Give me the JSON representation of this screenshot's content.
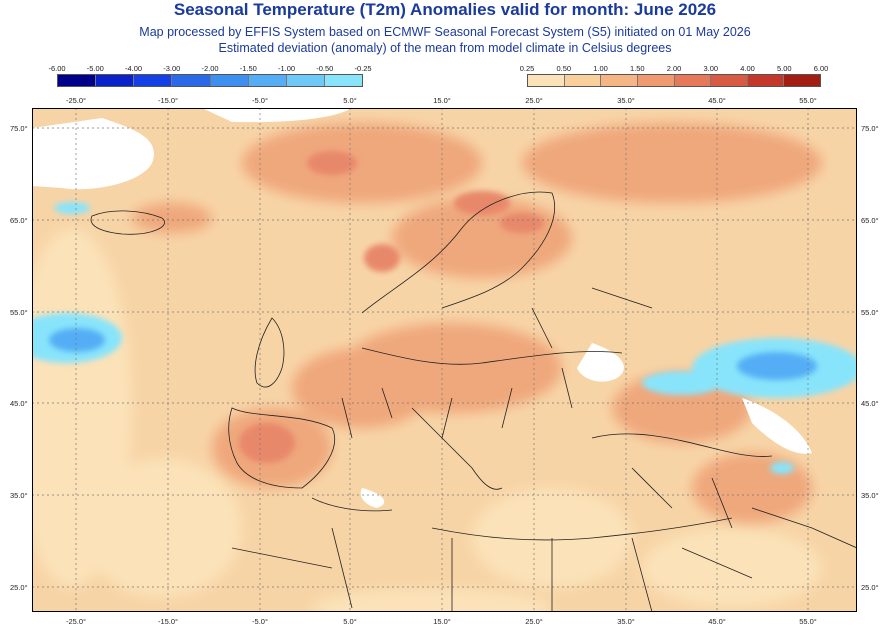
{
  "header": {
    "title": "Seasonal Temperature (T2m) Anomalies valid for month: June 2026",
    "subtitle1": "Map processed by EFFIS System based on ECMWF Seasonal Forecast System (S5) initiated on 01 May 2026",
    "subtitle2": "Estimated deviation (anomaly) of the mean from model climate in Celsius degrees"
  },
  "legend_cold": {
    "ticks": [
      "-6.00",
      "-5.00",
      "-4.00",
      "-3.00",
      "-2.00",
      "-1.50",
      "-1.00",
      "-0.50",
      "-0.25"
    ],
    "colors": [
      "#00008b",
      "#0a22c8",
      "#1440e6",
      "#2a6ae8",
      "#3d8ff0",
      "#55aef5",
      "#6ec9f7",
      "#88e4fb"
    ]
  },
  "legend_warm": {
    "ticks": [
      "0.25",
      "0.50",
      "1.00",
      "1.50",
      "2.00",
      "3.00",
      "4.00",
      "5.00",
      "6.00"
    ],
    "colors": [
      "#fbe2b8",
      "#f9cf9c",
      "#f5b584",
      "#ef9a70",
      "#e6795a",
      "#d95a42",
      "#c4382a",
      "#a21e12"
    ]
  },
  "lon_labels": [
    "-25.0°",
    "-15.0°",
    "-5.0°",
    "5.0°",
    "15.0°",
    "25.0°",
    "35.0°",
    "45.0°",
    "55.0°"
  ],
  "lat_labels": [
    "75.0°",
    "65.0°",
    "55.0°",
    "45.0°",
    "35.0°",
    "25.0°"
  ],
  "map_colors": {
    "base": "#f7d4a6",
    "light": "#fbe2b8",
    "warm": "#efa77c",
    "hot": "#e8886a",
    "cold_light": "#88e4fb",
    "cold": "#55aef5",
    "cold_dark": "#3d8ff0",
    "border": "#222222",
    "grid": "#777777"
  }
}
